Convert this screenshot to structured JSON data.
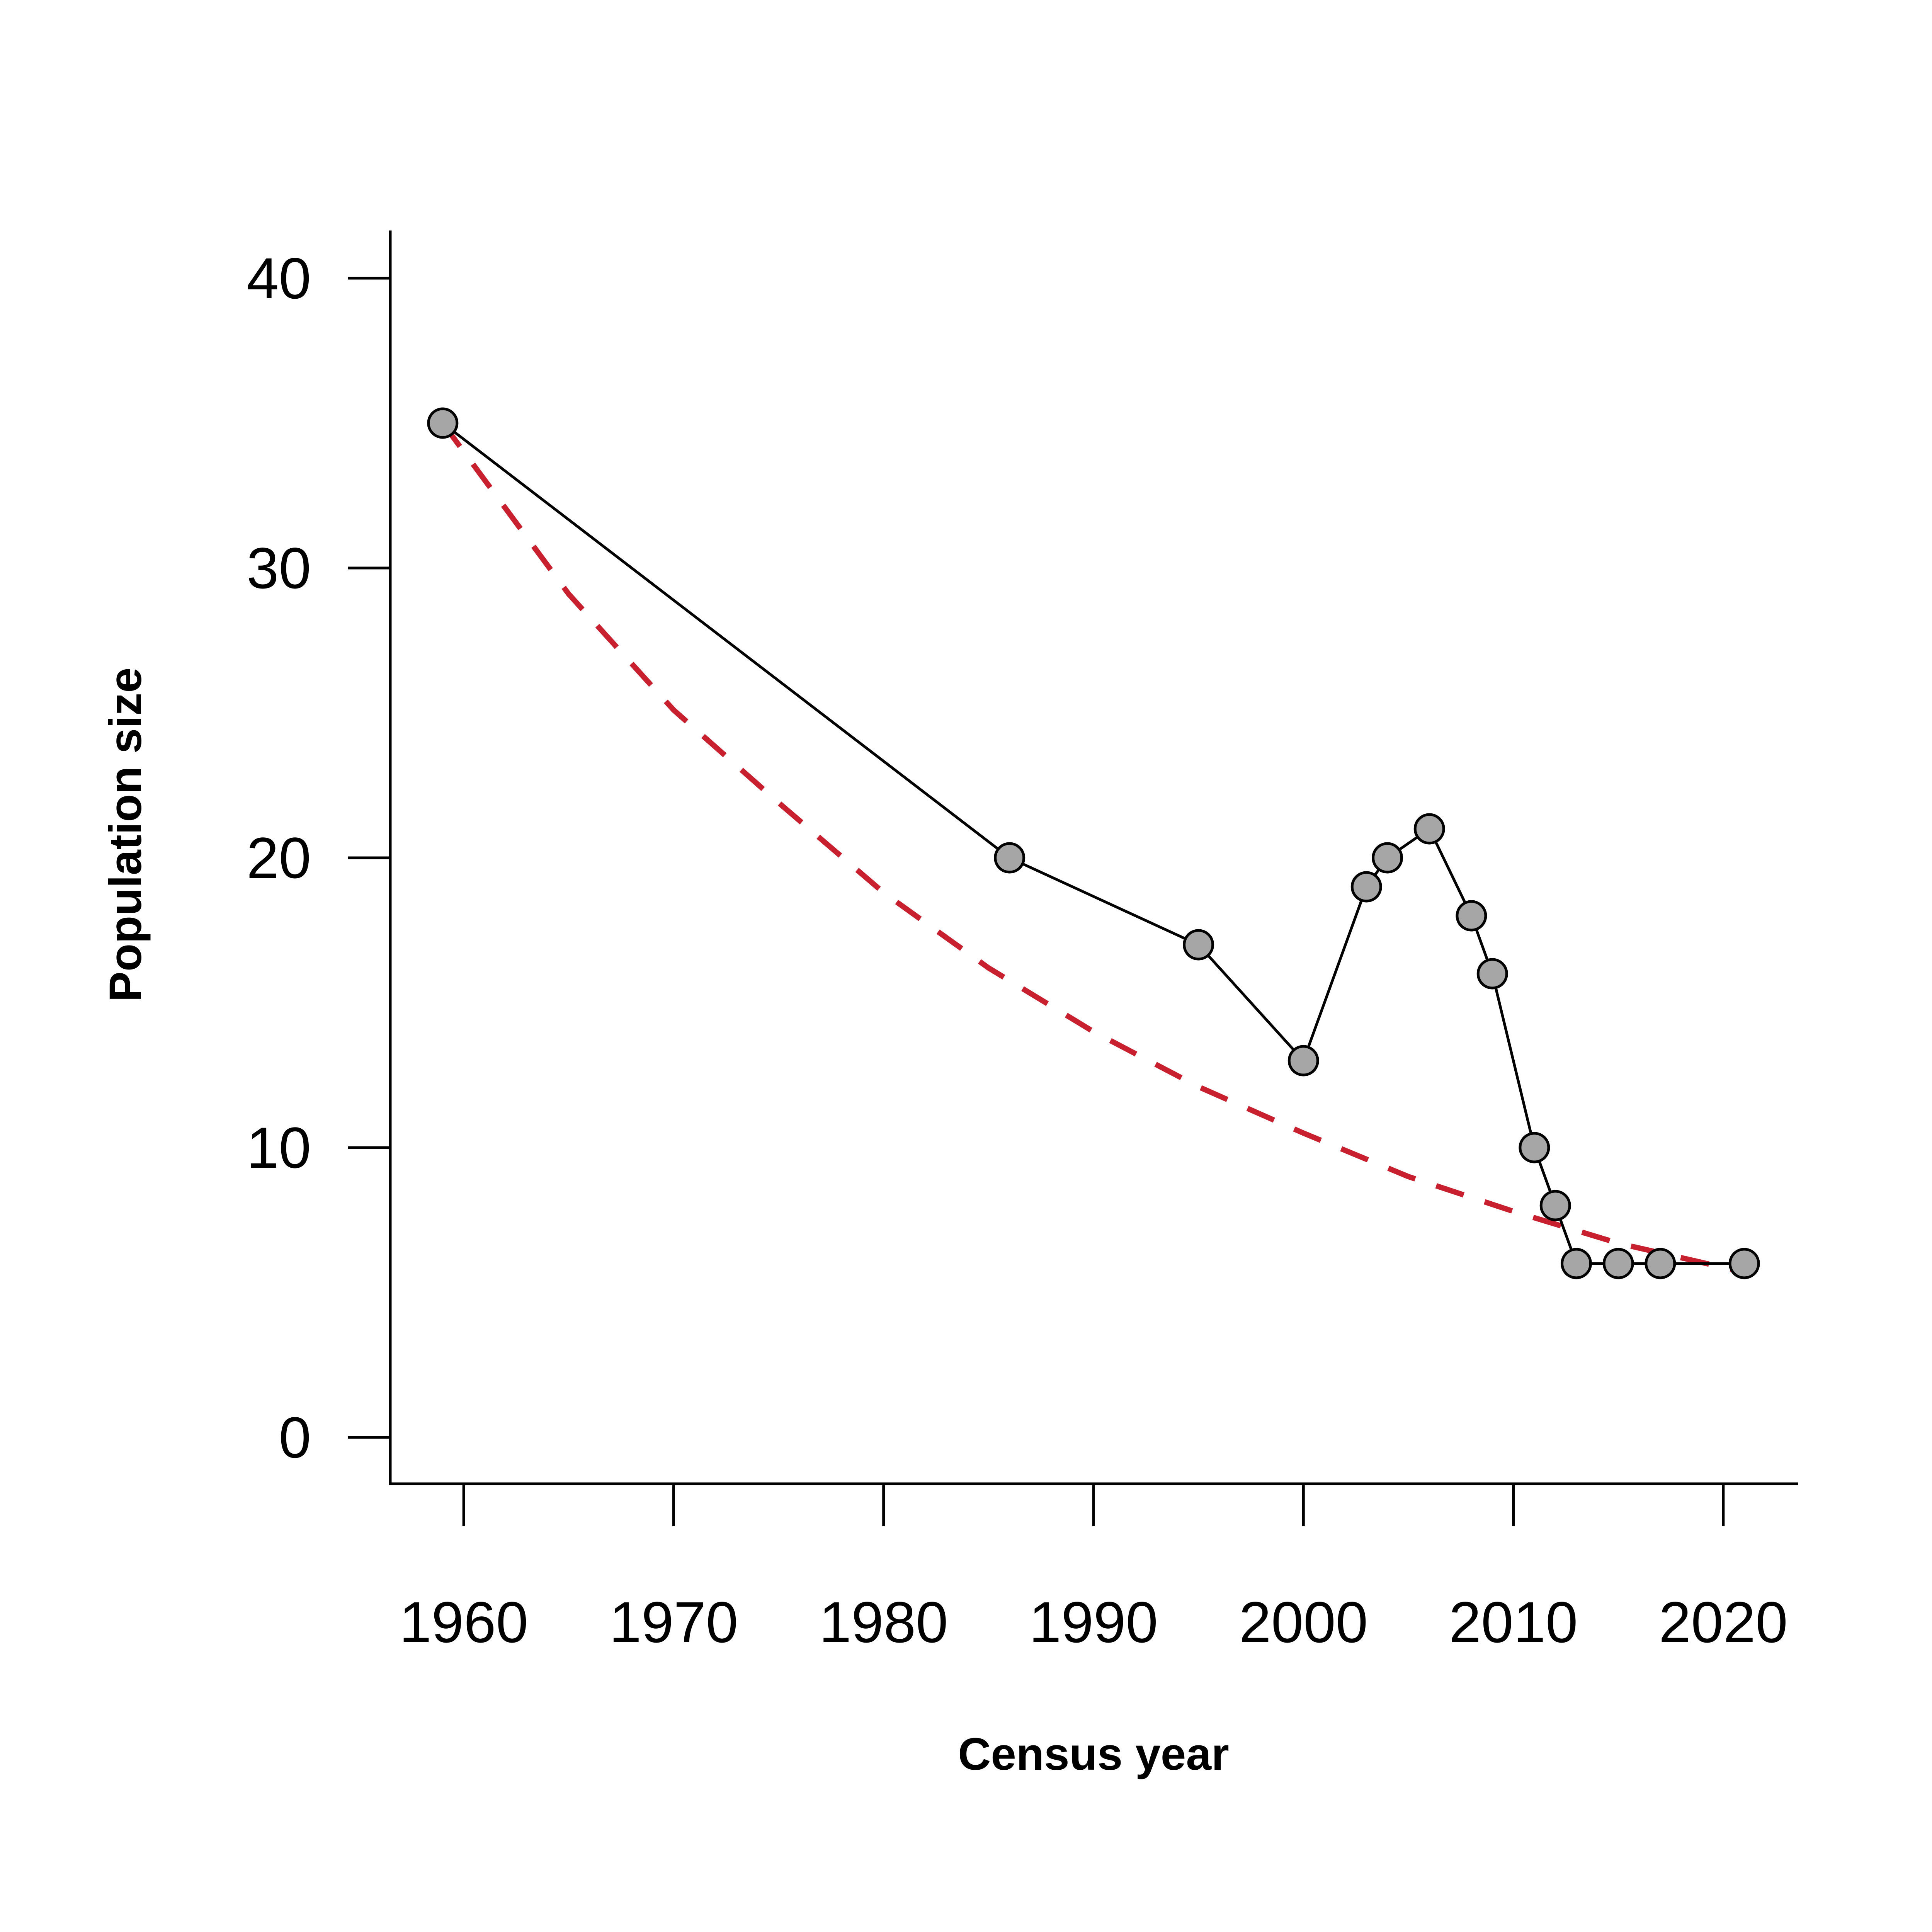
{
  "chart_data": {
    "type": "line",
    "xlabel": "Census year",
    "ylabel": "Population size",
    "xlim": [
      1956.5,
      2023.5
    ],
    "ylim": [
      -1.6,
      41.6
    ],
    "x_ticks": [
      1960,
      1970,
      1980,
      1990,
      2000,
      2010,
      2020
    ],
    "y_ticks": [
      0,
      10,
      20,
      30,
      40
    ],
    "grid": false,
    "legend": "none",
    "series": [
      {
        "style": "line-with-points",
        "color": "#000000",
        "marker_fill": "#a6a6a6",
        "x": [
          1959,
          1986,
          1995,
          2000,
          2003,
          2004,
          2006,
          2008,
          2009,
          2011,
          2012,
          2013,
          2015,
          2017,
          2021
        ],
        "y": [
          35,
          20,
          17,
          13,
          19,
          20,
          21,
          18,
          16,
          10,
          8,
          6,
          6,
          6,
          6
        ]
      },
      {
        "style": "dashed",
        "color": "#c8202f",
        "x": [
          1959,
          1965,
          1970,
          1975,
          1980,
          1985,
          1990,
          1995,
          2000,
          2005,
          2010,
          2015,
          2021
        ],
        "y": [
          35,
          29.1,
          25.1,
          21.9,
          18.8,
          16.2,
          14.0,
          12.1,
          10.5,
          9.0,
          7.8,
          6.7,
          5.7
        ]
      }
    ]
  }
}
